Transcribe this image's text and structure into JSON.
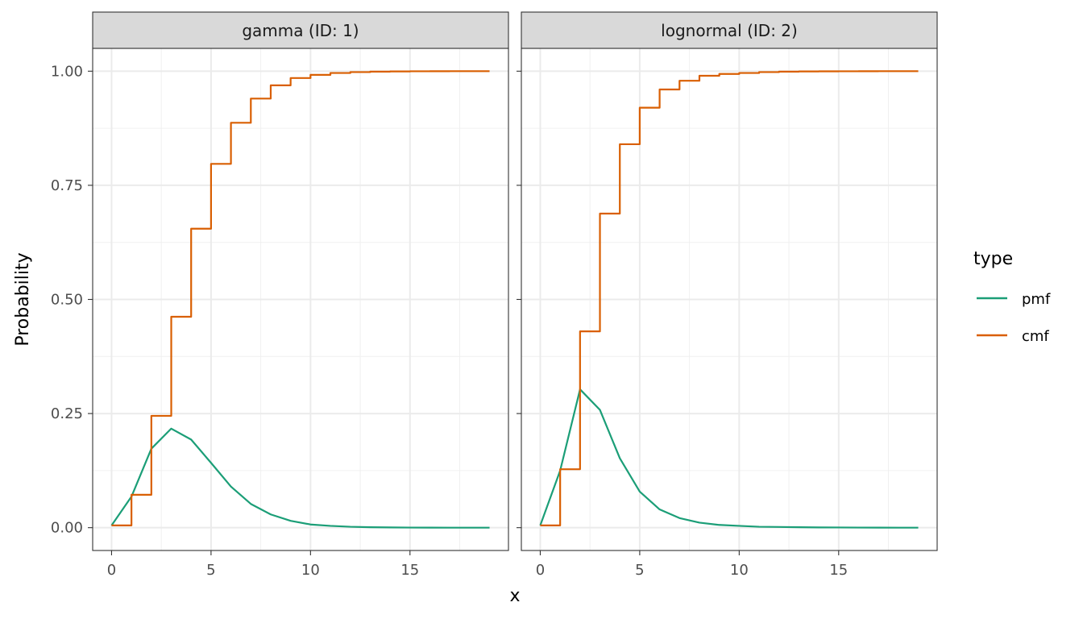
{
  "chart_data": {
    "type": "line",
    "xlabel": "x",
    "ylabel": "Probability",
    "xlim": [
      -0.95,
      19.95
    ],
    "ylim": [
      -0.05,
      1.05
    ],
    "x_ticks": [
      0,
      5,
      10,
      15
    ],
    "x_tick_labels": [
      "0",
      "5",
      "10",
      "15"
    ],
    "x_minor": [
      2.5,
      7.5,
      12.5,
      17.5
    ],
    "y_ticks": [
      0,
      0.25,
      0.5,
      0.75,
      1.0
    ],
    "y_tick_labels": [
      "0.00",
      "0.25",
      "0.50",
      "0.75",
      "1.00"
    ],
    "y_minor": [
      0.125,
      0.375,
      0.625,
      0.875
    ],
    "grid": true,
    "legend": {
      "title": "type",
      "position": "right",
      "entries": [
        {
          "label": "pmf",
          "color": "#1B9E77"
        },
        {
          "label": "cmf",
          "color": "#D95F02"
        }
      ]
    },
    "panels": [
      {
        "strip_label": "gamma (ID: 1)",
        "series": [
          {
            "name": "pmf",
            "style": "line",
            "color": "#1B9E77",
            "x": [
              0,
              1,
              2,
              3,
              4,
              5,
              6,
              7,
              8,
              9,
              10,
              11,
              12,
              13,
              14,
              15,
              16,
              17,
              18,
              19
            ],
            "y": [
              0.005,
              0.068,
              0.173,
              0.217,
              0.193,
              0.142,
              0.09,
              0.052,
              0.029,
              0.015,
              0.007,
              0.004,
              0.002,
              0.001,
              0.0005,
              0.0002,
              0.0001,
              0.0,
              0.0,
              0.0
            ]
          },
          {
            "name": "cmf",
            "style": "step",
            "color": "#D95F02",
            "x": [
              0,
              1,
              2,
              3,
              4,
              5,
              6,
              7,
              8,
              9,
              10,
              11,
              12,
              13,
              14,
              15,
              16,
              17,
              18,
              19
            ],
            "y": [
              0.005,
              0.072,
              0.245,
              0.462,
              0.655,
              0.797,
              0.887,
              0.94,
              0.969,
              0.985,
              0.992,
              0.996,
              0.998,
              0.999,
              0.9995,
              0.9998,
              0.9999,
              1.0,
              1.0,
              1.0
            ]
          }
        ]
      },
      {
        "strip_label": "lognormal (ID: 2)",
        "series": [
          {
            "name": "pmf",
            "style": "line",
            "color": "#1B9E77",
            "x": [
              0,
              1,
              2,
              3,
              4,
              5,
              6,
              7,
              8,
              9,
              10,
              11,
              12,
              13,
              14,
              15,
              16,
              17,
              18,
              19
            ],
            "y": [
              0.005,
              0.125,
              0.303,
              0.258,
              0.152,
              0.079,
              0.04,
              0.021,
              0.011,
              0.006,
              0.004,
              0.002,
              0.0015,
              0.001,
              0.0006,
              0.0004,
              0.0002,
              0.0001,
              0.0,
              0.0
            ]
          },
          {
            "name": "cmf",
            "style": "step",
            "color": "#D95F02",
            "x": [
              0,
              1,
              2,
              3,
              4,
              5,
              6,
              7,
              8,
              9,
              10,
              11,
              12,
              13,
              14,
              15,
              16,
              17,
              18,
              19
            ],
            "y": [
              0.005,
              0.128,
              0.43,
              0.688,
              0.84,
              0.92,
              0.96,
              0.979,
              0.99,
              0.994,
              0.996,
              0.998,
              0.999,
              0.9994,
              0.9997,
              0.9998,
              0.9999,
              1.0,
              1.0,
              1.0
            ]
          }
        ]
      }
    ]
  }
}
